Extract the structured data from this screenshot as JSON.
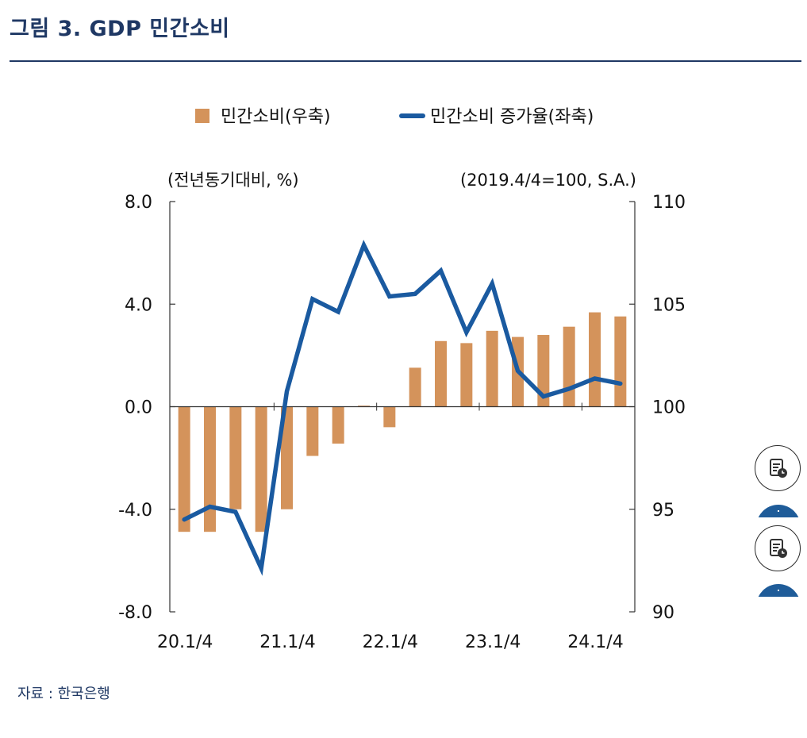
{
  "title": "그림 3. GDP 민간소비",
  "source": "자료 : 한국은행",
  "colors": {
    "bar": "#d4935b",
    "line": "#1a5aa0",
    "title": "#1f3864",
    "axis": "#333333"
  },
  "chart_data": {
    "type": "bar+line",
    "legend": [
      {
        "label": "민간소비(우축)",
        "kind": "bar"
      },
      {
        "label": "민간소비 증가율(좌축)",
        "kind": "line"
      }
    ],
    "left_axis_unit": "(전년동기대비, %)",
    "right_axis_unit": "(2019.4/4=100, S.A.)",
    "left_ylim": [
      -8,
      8
    ],
    "right_ylim": [
      90,
      110
    ],
    "left_ticks": [
      "8.0",
      "4.0",
      "0.0",
      "-4.0",
      "-8.0"
    ],
    "right_ticks": [
      "110",
      "105",
      "100",
      "95",
      "90"
    ],
    "x_tick_labels": [
      "20.1/4",
      "21.1/4",
      "22.1/4",
      "23.1/4",
      "24.1/4"
    ],
    "categories": [
      "20.1/4",
      "20.2/4",
      "20.3/4",
      "20.4/4",
      "21.1/4",
      "21.2/4",
      "21.3/4",
      "21.4/4",
      "22.1/4",
      "22.2/4",
      "22.3/4",
      "22.4/4",
      "23.1/4",
      "23.2/4",
      "23.3/4",
      "23.4/4",
      "24.1/4",
      "24.2/4"
    ],
    "series": [
      {
        "name": "민간소비(우축)",
        "axis": "right",
        "type": "bar",
        "values": [
          93.9,
          93.9,
          95.0,
          93.9,
          95.0,
          97.6,
          98.2,
          100.05,
          99.0,
          101.9,
          103.2,
          103.1,
          103.7,
          103.4,
          103.5,
          103.9,
          104.6,
          104.4
        ]
      },
      {
        "name": "민간소비 증가율(좌축)",
        "axis": "left",
        "type": "line",
        "values": [
          -4.4,
          -3.9,
          -4.1,
          -6.3,
          0.6,
          4.2,
          3.7,
          6.3,
          4.3,
          4.4,
          5.3,
          2.9,
          4.8,
          1.4,
          0.4,
          0.7,
          1.1,
          0.9
        ]
      }
    ],
    "grid": false,
    "legend_position": "top"
  }
}
